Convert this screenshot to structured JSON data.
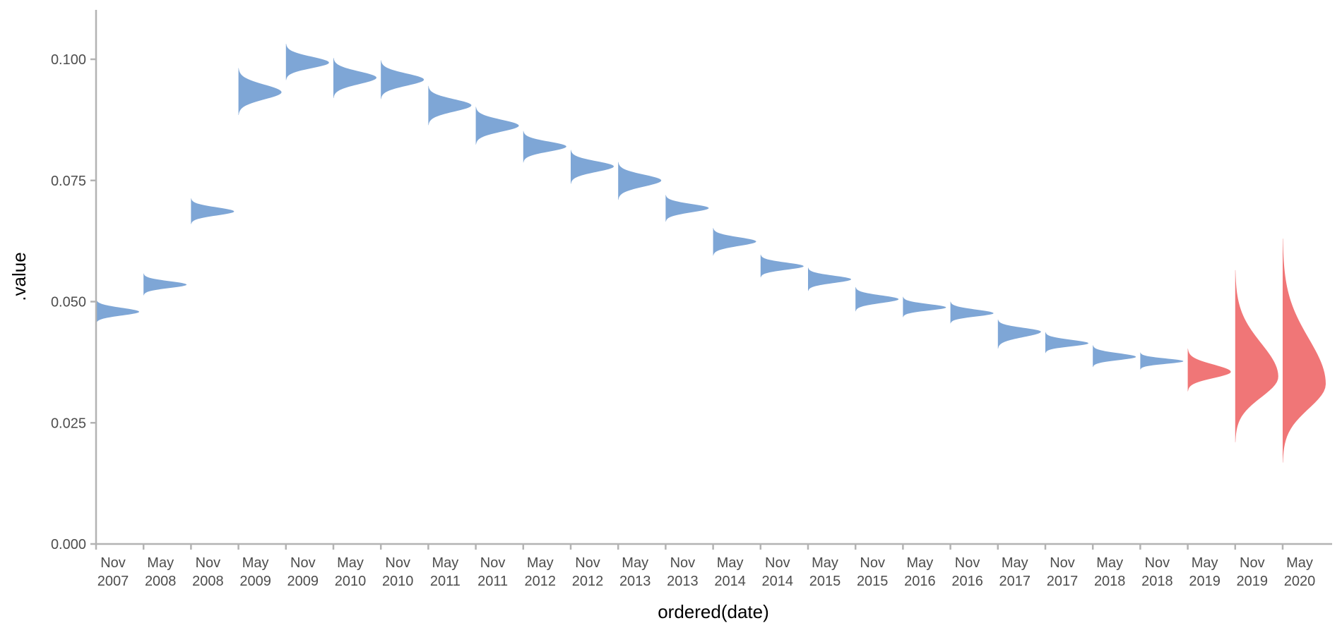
{
  "chart_data": {
    "type": "area",
    "xlabel": "ordered(date)",
    "ylabel": ".value",
    "ylim": [
      0,
      0.11
    ],
    "yticks": [
      "0.000",
      "0.025",
      "0.050",
      "0.075",
      "0.100"
    ],
    "ytick_values": [
      0,
      0.025,
      0.05,
      0.075,
      0.1
    ],
    "grid": false,
    "legend": "none",
    "categories": [
      "Nov 2007",
      "May 2008",
      "Nov 2008",
      "May 2009",
      "Nov 2009",
      "May 2010",
      "Nov 2010",
      "May 2011",
      "Nov 2011",
      "May 2012",
      "Nov 2012",
      "May 2013",
      "Nov 2013",
      "May 2014",
      "Nov 2014",
      "May 2015",
      "Nov 2015",
      "May 2016",
      "Nov 2016",
      "May 2017",
      "Nov 2017",
      "May 2018",
      "Nov 2018",
      "May 2019",
      "Nov 2019",
      "May 2020"
    ],
    "category_labels": [
      [
        "Nov",
        "2007"
      ],
      [
        "May",
        "2008"
      ],
      [
        "Nov",
        "2008"
      ],
      [
        "May",
        "2009"
      ],
      [
        "Nov",
        "2009"
      ],
      [
        "May",
        "2010"
      ],
      [
        "Nov",
        "2010"
      ],
      [
        "May",
        "2011"
      ],
      [
        "Nov",
        "2011"
      ],
      [
        "May",
        "2012"
      ],
      [
        "Nov",
        "2012"
      ],
      [
        "May",
        "2013"
      ],
      [
        "Nov",
        "2013"
      ],
      [
        "May",
        "2014"
      ],
      [
        "Nov",
        "2014"
      ],
      [
        "May",
        "2015"
      ],
      [
        "Nov",
        "2015"
      ],
      [
        "May",
        "2016"
      ],
      [
        "Nov",
        "2016"
      ],
      [
        "May",
        "2017"
      ],
      [
        "Nov",
        "2017"
      ],
      [
        "May",
        "2018"
      ],
      [
        "Nov",
        "2018"
      ],
      [
        "May",
        "2019"
      ],
      [
        "Nov",
        "2019"
      ],
      [
        "May",
        "2020"
      ]
    ],
    "distributions": [
      {
        "mode": 0.0479,
        "lo": 0.0455,
        "hi": 0.0505,
        "forecast": false
      },
      {
        "mode": 0.0535,
        "lo": 0.0513,
        "hi": 0.0558,
        "forecast": false
      },
      {
        "mode": 0.0686,
        "lo": 0.066,
        "hi": 0.0713,
        "forecast": false
      },
      {
        "mode": 0.0932,
        "lo": 0.0885,
        "hi": 0.0982,
        "forecast": false
      },
      {
        "mode": 0.0993,
        "lo": 0.0957,
        "hi": 0.1032,
        "forecast": false
      },
      {
        "mode": 0.0962,
        "lo": 0.092,
        "hi": 0.1003,
        "forecast": false
      },
      {
        "mode": 0.0958,
        "lo": 0.0918,
        "hi": 0.0998,
        "forecast": false
      },
      {
        "mode": 0.0905,
        "lo": 0.0864,
        "hi": 0.0945,
        "forecast": false
      },
      {
        "mode": 0.0863,
        "lo": 0.0824,
        "hi": 0.0902,
        "forecast": false
      },
      {
        "mode": 0.082,
        "lo": 0.0787,
        "hi": 0.0852,
        "forecast": false
      },
      {
        "mode": 0.0779,
        "lo": 0.0743,
        "hi": 0.0813,
        "forecast": false
      },
      {
        "mode": 0.075,
        "lo": 0.071,
        "hi": 0.0788,
        "forecast": false
      },
      {
        "mode": 0.0693,
        "lo": 0.0665,
        "hi": 0.072,
        "forecast": false
      },
      {
        "mode": 0.0624,
        "lo": 0.0595,
        "hi": 0.0652,
        "forecast": false
      },
      {
        "mode": 0.0573,
        "lo": 0.055,
        "hi": 0.0597,
        "forecast": false
      },
      {
        "mode": 0.0546,
        "lo": 0.0522,
        "hi": 0.057,
        "forecast": false
      },
      {
        "mode": 0.0505,
        "lo": 0.048,
        "hi": 0.053,
        "forecast": false
      },
      {
        "mode": 0.0488,
        "lo": 0.0468,
        "hi": 0.051,
        "forecast": false
      },
      {
        "mode": 0.0476,
        "lo": 0.0455,
        "hi": 0.05,
        "forecast": false
      },
      {
        "mode": 0.0438,
        "lo": 0.0403,
        "hi": 0.0463,
        "forecast": false
      },
      {
        "mode": 0.0414,
        "lo": 0.0394,
        "hi": 0.0437,
        "forecast": false
      },
      {
        "mode": 0.0386,
        "lo": 0.0365,
        "hi": 0.041,
        "forecast": false
      },
      {
        "mode": 0.0377,
        "lo": 0.036,
        "hi": 0.0395,
        "forecast": false
      },
      {
        "mode": 0.0355,
        "lo": 0.0315,
        "hi": 0.0403,
        "forecast": true
      },
      {
        "mode": 0.0345,
        "lo": 0.021,
        "hi": 0.0565,
        "forecast": true
      },
      {
        "mode": 0.033,
        "lo": 0.0168,
        "hi": 0.063,
        "forecast": true
      }
    ],
    "colors": {
      "history": "#7ea6d6",
      "forecast": "#f07677",
      "axis": "#b3b3b3",
      "tick_text": "#4d4d4d"
    }
  }
}
